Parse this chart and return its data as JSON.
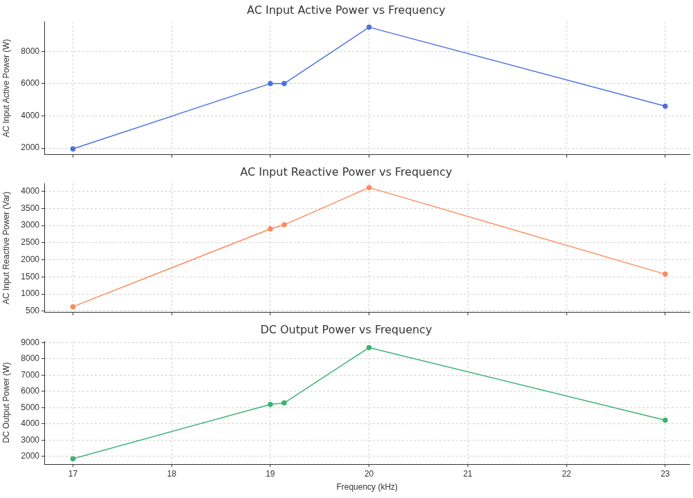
{
  "chart_data": [
    {
      "type": "line",
      "title": "AC Input Active Power vs Frequency",
      "ylabel": "AC Input Active Power (W)",
      "x": [
        17,
        19,
        19.14,
        20,
        23
      ],
      "series": [
        {
          "color": "#4a72e0",
          "values": [
            1950,
            6000,
            6000,
            9500,
            4600
          ]
        }
      ],
      "xlim": [
        16.71,
        23.25
      ],
      "xticks": [
        17,
        18,
        19,
        20,
        21,
        22,
        23
      ],
      "ylim": [
        1580,
        9850
      ],
      "yticks": [
        2000,
        4000,
        6000,
        8000
      ],
      "tick_labels": "y",
      "grid": true,
      "legend": false,
      "marker": "circle",
      "line_style": "solid"
    },
    {
      "type": "line",
      "title": "AC Input Reactive Power vs Frequency",
      "ylabel": "AC Input Reactive Power (Var)",
      "x": [
        17,
        19,
        19.14,
        20,
        23
      ],
      "series": [
        {
          "color": "#ff8a5b",
          "values": [
            630,
            2900,
            3020,
            4110,
            1580
          ]
        }
      ],
      "xlim": [
        16.71,
        23.25
      ],
      "xticks": [
        17,
        18,
        19,
        20,
        21,
        22,
        23
      ],
      "ylim": [
        460,
        4230
      ],
      "yticks": [
        500,
        1000,
        1500,
        2000,
        2500,
        3000,
        3500,
        4000
      ],
      "tick_labels": "y",
      "grid": true,
      "legend": false,
      "marker": "circle",
      "line_style": "solid"
    },
    {
      "type": "line",
      "title": "DC Output Power vs Frequency",
      "xlabel": "Frequency (kHz)",
      "ylabel": "DC Output Power (W)",
      "x": [
        17,
        19,
        19.14,
        20,
        23
      ],
      "series": [
        {
          "color": "#3cb371",
          "values": [
            1850,
            5200,
            5290,
            8700,
            4230
          ]
        }
      ],
      "xlim": [
        16.71,
        23.25
      ],
      "xticks": [
        17,
        18,
        19,
        20,
        21,
        22,
        23
      ],
      "ylim": [
        1510,
        9100
      ],
      "yticks": [
        2000,
        3000,
        4000,
        5000,
        6000,
        7000,
        8000,
        9000
      ],
      "grid": true,
      "legend": false,
      "marker": "circle",
      "line_style": "solid"
    }
  ]
}
